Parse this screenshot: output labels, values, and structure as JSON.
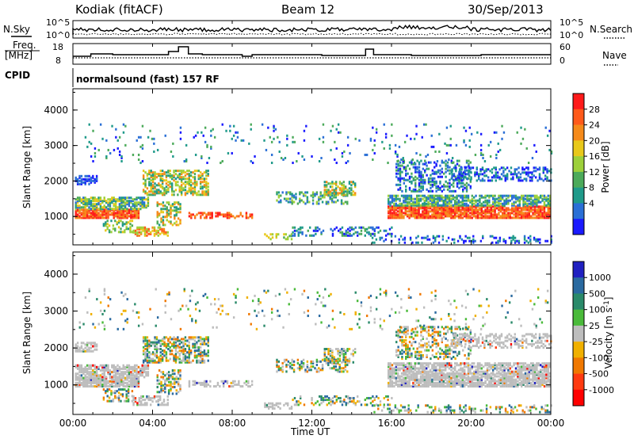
{
  "header": {
    "station": "Kodiak (fitACF)",
    "beam": "Beam 12",
    "date": "30/Sep/2013"
  },
  "summary_panels": {
    "nsky_label": "N.Sky",
    "nsearch_label": "N.Search",
    "n_ticks_left": [
      "10^5",
      "10^0"
    ],
    "n_ticks_right": [
      "10^5",
      "10^0"
    ],
    "freq_label_1": "Freq.",
    "freq_label_2": "[MHz]",
    "freq_ticks": [
      "18",
      "8"
    ],
    "nave_label": "Nave",
    "nave_ticks": [
      "60",
      "0"
    ],
    "cpid_label": "CPID",
    "cpid_value": "normalsound (fast) 157 RF"
  },
  "chart_data": [
    {
      "type": "heatmap",
      "title": "",
      "xlabel": "Time UT",
      "ylabel": "Slant Range [km]",
      "x_ticks": [
        "00:00",
        "04:00",
        "08:00",
        "12:00",
        "16:00",
        "20:00",
        "00:00"
      ],
      "y_ticks": [
        "1000",
        "2000",
        "3000",
        "4000"
      ],
      "ylim": [
        200,
        4600
      ],
      "colorbar": {
        "label": "Power [dB]",
        "ticks": [
          "4",
          "8",
          "12",
          "16",
          "20",
          "24",
          "28"
        ],
        "colors": [
          "#1a1aff",
          "#2a6fd6",
          "#1f9a8a",
          "#4caa5a",
          "#9dd03a",
          "#e8c81a",
          "#f58a1a",
          "#ff5a1a",
          "#ff1a1a"
        ]
      }
    },
    {
      "type": "heatmap",
      "title": "",
      "xlabel": "Time UT",
      "ylabel": "Slant Range [km]",
      "x_ticks": [
        "00:00",
        "04:00",
        "08:00",
        "12:00",
        "16:00",
        "20:00",
        "00:00"
      ],
      "y_ticks": [
        "1000",
        "2000",
        "3000",
        "4000"
      ],
      "ylim": [
        200,
        4600
      ],
      "colorbar": {
        "label": "Velocity [m s",
        "label_sup": "-1",
        "label_end": "]",
        "ticks": [
          "1000",
          "500",
          "100",
          "25",
          "-25",
          "-100",
          "-500",
          "-1000"
        ],
        "colors": [
          "#2020c0",
          "#2a6aa0",
          "#2a8a6a",
          "#4aba3a",
          "#bdbdbd",
          "#f0b000",
          "#f07800",
          "#ff3a10",
          "#ff0000"
        ]
      }
    }
  ]
}
